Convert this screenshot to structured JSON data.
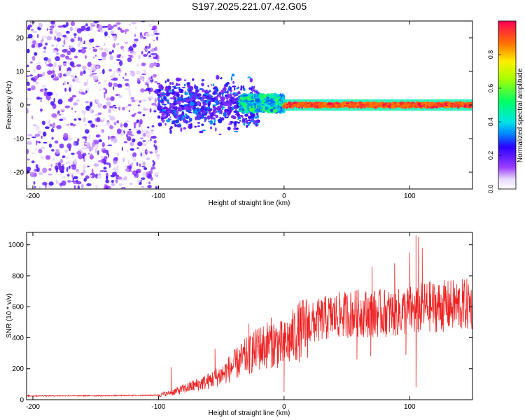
{
  "title": "S197.2025.221.07.42.G05",
  "chart_data": [
    {
      "type": "heatmap",
      "title": "",
      "xlabel": "Height of straight line (km)",
      "ylabel": "Frequency (Hz)",
      "xlim": [
        -205,
        150
      ],
      "ylim": [
        -25,
        25
      ],
      "x_ticks": [
        -200,
        -100,
        0,
        100
      ],
      "y_ticks": [
        -20,
        -10,
        0,
        10,
        20
      ],
      "colorbar": {
        "label": "Normalized spectral amplitude",
        "range": [
          0,
          1
        ],
        "ticks": [
          0.0,
          0.2,
          0.4,
          0.6,
          0.8
        ]
      },
      "regions": [
        {
          "x_range": [
            -205,
            -100
          ],
          "freq_range": [
            -25,
            25
          ],
          "amplitude": [
            0.05,
            0.25
          ],
          "description": "broadband noise"
        },
        {
          "x_range": [
            -100,
            -20
          ],
          "freq_range": [
            -10,
            10
          ],
          "amplitude": [
            0.15,
            0.35
          ],
          "description": "noisy band around zero Hz"
        },
        {
          "x_range": [
            -35,
            0
          ],
          "freq_range": [
            -2,
            3
          ],
          "amplitude": [
            0.3,
            0.6
          ],
          "description": "signal emerging"
        },
        {
          "x_range": [
            0,
            150
          ],
          "freq_range": [
            -0.5,
            0.5
          ],
          "amplitude": [
            0.85,
            1.0
          ],
          "description": "strong narrow line at 0 Hz"
        }
      ]
    },
    {
      "type": "line",
      "title": "",
      "xlabel": "Height of straight line (km)",
      "ylabel": "SNR (10 * v/v)",
      "xlim": [
        -205,
        150
      ],
      "ylim": [
        0,
        1080
      ],
      "x_ticks": [
        -200,
        -100,
        0,
        100
      ],
      "y_ticks": [
        0,
        200,
        400,
        600,
        800,
        1000
      ],
      "series": [
        {
          "name": "SNR",
          "color": "#ee2222",
          "x": [
            -205,
            -190,
            -170,
            -150,
            -130,
            -110,
            -100,
            -90,
            -80,
            -70,
            -60,
            -50,
            -40,
            -30,
            -20,
            -10,
            0,
            10,
            20,
            30,
            40,
            50,
            60,
            70,
            80,
            90,
            100,
            105,
            110,
            120,
            130,
            140,
            150
          ],
          "values": [
            25,
            25,
            26,
            26,
            27,
            28,
            30,
            45,
            70,
            95,
            120,
            160,
            220,
            280,
            330,
            370,
            350,
            430,
            480,
            520,
            540,
            550,
            560,
            555,
            560,
            560,
            580,
            560,
            600,
            600,
            605,
            610,
            615
          ],
          "spikes": [
            {
              "x": -90,
              "y": 210
            },
            {
              "x": -55,
              "y": 330
            },
            {
              "x": -28,
              "y": 490
            },
            {
              "x": -20,
              "y": 460
            },
            {
              "x": 1,
              "y": 440
            },
            {
              "x": 4,
              "y": 460
            },
            {
              "x": 70,
              "y": 860
            },
            {
              "x": 88,
              "y": 880
            },
            {
              "x": 100,
              "y": 950
            },
            {
              "x": 105,
              "y": 1060
            },
            {
              "x": 107,
              "y": 1050
            },
            {
              "x": 110,
              "y": 980
            }
          ],
          "dips": [
            {
              "x": 0,
              "y": 50
            },
            {
              "x": 58,
              "y": 260
            },
            {
              "x": 69,
              "y": 280
            },
            {
              "x": 97,
              "y": 290
            },
            {
              "x": 105,
              "y": 80
            }
          ]
        }
      ]
    }
  ]
}
